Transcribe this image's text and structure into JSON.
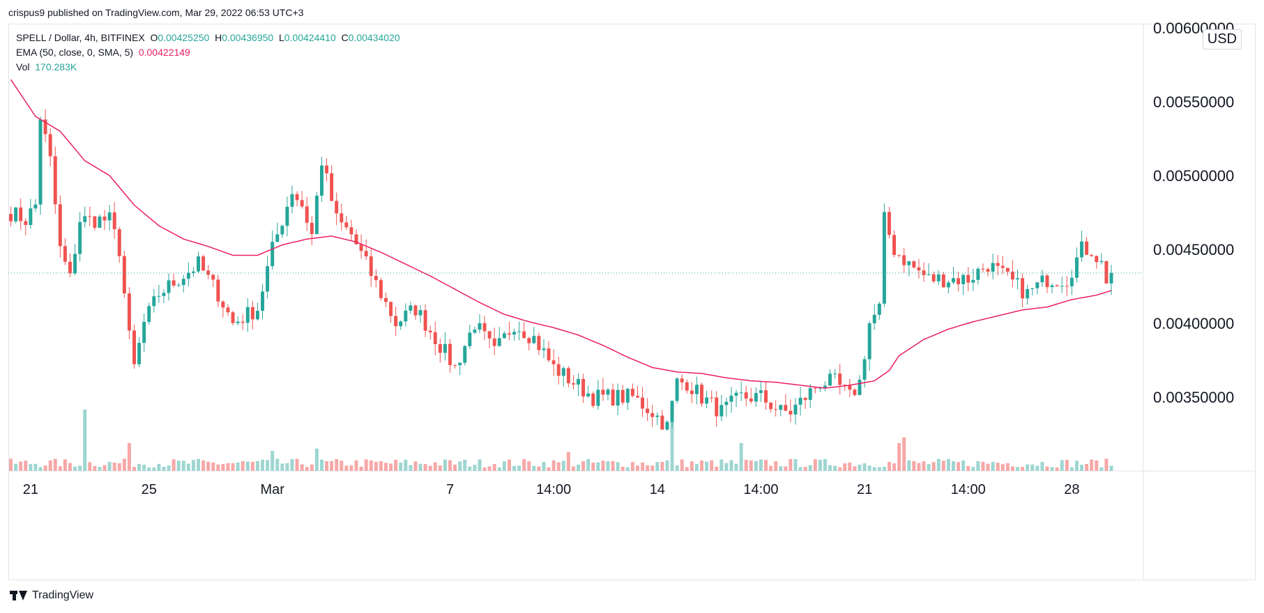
{
  "header": {
    "publisher_line": "crispus9 published on TradingView.com, Mar 29, 2022 06:53 UTC+3"
  },
  "legend": {
    "symbol_label": "SPELL / Dollar, 4h, BITFINEX",
    "o_label": "O",
    "o_value": "0.00425250",
    "h_label": "H",
    "h_value": "0.00436950",
    "l_label": "L",
    "l_value": "0.00424410",
    "c_label": "C",
    "c_value": "0.00434020",
    "ema_label": "EMA (50, close, 0, SMA, 5)",
    "ema_value": "0.00422149",
    "vol_label": "Vol",
    "vol_value": "170.283K"
  },
  "currency": "USD",
  "footer": {
    "brand": "TradingView"
  },
  "colors": {
    "up": "#26a69a",
    "down": "#ef5350",
    "ema": "#e91e63",
    "vol_up": "#9ed6d1",
    "vol_down": "#f6a8a7",
    "last_price_line": "#26a69a"
  },
  "chart_data": {
    "type": "candlestick",
    "interval": "4h",
    "y_axis": {
      "min": 0.003,
      "max": 0.006,
      "ticks": [
        0.0035,
        0.004,
        0.0045,
        0.005,
        0.0055,
        0.006
      ],
      "tick_labels": [
        "0.00350000",
        "0.00400000",
        "0.00450000",
        "0.00500000",
        "0.00550000",
        "0.00600000"
      ],
      "position": "right"
    },
    "x_axis": {
      "bar_count": 230,
      "ticks": [
        {
          "label": "21",
          "bar": 4
        },
        {
          "label": "25",
          "bar": 28
        },
        {
          "label": "Mar",
          "bar": 53
        },
        {
          "label": "7",
          "bar": 89
        },
        {
          "label": "14:00",
          "bar": 110
        },
        {
          "label": "14",
          "bar": 131
        },
        {
          "label": "14:00",
          "bar": 152
        },
        {
          "label": "21",
          "bar": 173
        },
        {
          "label": "14:00",
          "bar": 194
        },
        {
          "label": "28",
          "bar": 215
        }
      ]
    },
    "last_price": 0.0043402,
    "price_anchors": [
      [
        0,
        0.00475
      ],
      [
        3,
        0.0047
      ],
      [
        5,
        0.0048
      ],
      [
        6,
        0.0054
      ],
      [
        8,
        0.0051
      ],
      [
        10,
        0.0045
      ],
      [
        12,
        0.0043
      ],
      [
        14,
        0.0047
      ],
      [
        17,
        0.0047
      ],
      [
        20,
        0.0047
      ],
      [
        22,
        0.0045
      ],
      [
        24,
        0.0039
      ],
      [
        25,
        0.0037
      ],
      [
        27,
        0.004
      ],
      [
        30,
        0.0042
      ],
      [
        34,
        0.0043
      ],
      [
        38,
        0.0044
      ],
      [
        42,
        0.0042
      ],
      [
        45,
        0.004
      ],
      [
        50,
        0.0041
      ],
      [
        53,
        0.0045
      ],
      [
        55,
        0.0047
      ],
      [
        57,
        0.0049
      ],
      [
        59,
        0.0048
      ],
      [
        61,
        0.0046
      ],
      [
        63,
        0.0051
      ],
      [
        66,
        0.0047
      ],
      [
        69,
        0.0046
      ],
      [
        72,
        0.0044
      ],
      [
        75,
        0.0042
      ],
      [
        78,
        0.004
      ],
      [
        82,
        0.0041
      ],
      [
        86,
        0.0039
      ],
      [
        90,
        0.0037
      ],
      [
        94,
        0.004
      ],
      [
        98,
        0.0038
      ],
      [
        102,
        0.004
      ],
      [
        106,
        0.0039
      ],
      [
        110,
        0.0037
      ],
      [
        114,
        0.0036
      ],
      [
        118,
        0.0035
      ],
      [
        122,
        0.0035
      ],
      [
        126,
        0.0035
      ],
      [
        130,
        0.0034
      ],
      [
        133,
        0.0033
      ],
      [
        135,
        0.0036
      ],
      [
        137,
        0.0036
      ],
      [
        140,
        0.0035
      ],
      [
        144,
        0.0034
      ],
      [
        148,
        0.0035
      ],
      [
        152,
        0.0035
      ],
      [
        156,
        0.0034
      ],
      [
        158,
        0.0034
      ],
      [
        161,
        0.0035
      ],
      [
        164,
        0.0036
      ],
      [
        167,
        0.0036
      ],
      [
        170,
        0.0035
      ],
      [
        172,
        0.0036
      ],
      [
        174,
        0.004
      ],
      [
        176,
        0.0041
      ],
      [
        177,
        0.0047
      ],
      [
        179,
        0.0045
      ],
      [
        182,
        0.0044
      ],
      [
        186,
        0.0043
      ],
      [
        190,
        0.0043
      ],
      [
        194,
        0.0043
      ],
      [
        198,
        0.0044
      ],
      [
        202,
        0.0043
      ],
      [
        206,
        0.0042
      ],
      [
        210,
        0.0043
      ],
      [
        214,
        0.0043
      ],
      [
        217,
        0.0045
      ],
      [
        219,
        0.0045
      ],
      [
        221,
        0.0044
      ],
      [
        222,
        0.0043
      ],
      [
        223,
        0.0043402
      ]
    ],
    "ema_anchors": [
      [
        0,
        0.00565
      ],
      [
        5,
        0.0054
      ],
      [
        10,
        0.0053
      ],
      [
        15,
        0.0051
      ],
      [
        20,
        0.005
      ],
      [
        25,
        0.0048
      ],
      [
        30,
        0.00466
      ],
      [
        35,
        0.00457
      ],
      [
        40,
        0.00452
      ],
      [
        45,
        0.00446
      ],
      [
        50,
        0.00446
      ],
      [
        55,
        0.00453
      ],
      [
        60,
        0.00457
      ],
      [
        65,
        0.00459
      ],
      [
        70,
        0.00455
      ],
      [
        75,
        0.00448
      ],
      [
        80,
        0.0044
      ],
      [
        85,
        0.00432
      ],
      [
        90,
        0.00423
      ],
      [
        95,
        0.00414
      ],
      [
        100,
        0.00406
      ],
      [
        105,
        0.00401
      ],
      [
        110,
        0.00397
      ],
      [
        115,
        0.00392
      ],
      [
        120,
        0.00385
      ],
      [
        125,
        0.00377
      ],
      [
        130,
        0.0037
      ],
      [
        135,
        0.00367
      ],
      [
        140,
        0.00366
      ],
      [
        145,
        0.00363
      ],
      [
        150,
        0.00361
      ],
      [
        155,
        0.0036
      ],
      [
        160,
        0.00358
      ],
      [
        165,
        0.00356
      ],
      [
        170,
        0.00358
      ],
      [
        175,
        0.00361
      ],
      [
        178,
        0.00368
      ],
      [
        180,
        0.00378
      ],
      [
        185,
        0.00389
      ],
      [
        190,
        0.00396
      ],
      [
        195,
        0.00401
      ],
      [
        200,
        0.00405
      ],
      [
        205,
        0.00409
      ],
      [
        210,
        0.00411
      ],
      [
        215,
        0.00416
      ],
      [
        220,
        0.00419
      ],
      [
        223,
        0.00422149
      ]
    ],
    "volume_spikes": [
      [
        15,
        0.55
      ],
      [
        24,
        0.25
      ],
      [
        53,
        0.18
      ],
      [
        62,
        0.2
      ],
      [
        113,
        0.17
      ],
      [
        134,
        0.55
      ],
      [
        148,
        0.25
      ],
      [
        180,
        0.25
      ],
      [
        181,
        0.3
      ],
      [
        199,
        0.08
      ]
    ],
    "volume_max_label": "170.283K"
  }
}
